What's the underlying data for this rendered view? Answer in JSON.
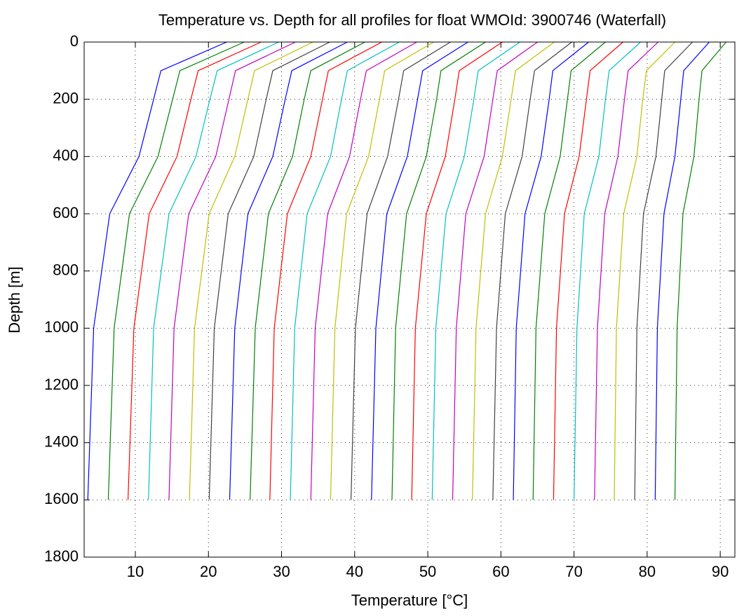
{
  "chart_data": {
    "type": "line",
    "title": "Temperature vs. Depth for all profiles for float WMOId: 3900746 (Waterfall)",
    "x_label": "Temperature [°C]",
    "y_label": "Depth [m]",
    "depths": [
      0,
      100,
      200,
      400,
      600,
      1000,
      1600
    ],
    "xlim": [
      3,
      92
    ],
    "xticks": [
      10,
      20,
      30,
      40,
      50,
      60,
      70,
      80,
      90
    ],
    "ylim": [
      0,
      1800
    ],
    "yticks": [
      0,
      200,
      400,
      600,
      800,
      1000,
      1200,
      1400,
      1600,
      1800
    ],
    "y_reversed": true,
    "grid": true,
    "color_cycle": [
      "#0000ff",
      "#008000",
      "#ff0000",
      "#00bfbf",
      "#bf00bf",
      "#bfbf00",
      "#404040"
    ],
    "series": [
      {
        "values": [
          22.5,
          13.5,
          12.5,
          10.5,
          6.5,
          4.3,
          3.5
        ]
      },
      {
        "values": [
          24.9,
          16.1,
          15.1,
          13.1,
          9.2,
          7.1,
          6.3
        ]
      },
      {
        "values": [
          27.2,
          18.6,
          17.6,
          15.7,
          11.9,
          9.8,
          9.0
        ]
      },
      {
        "values": [
          29.6,
          21.2,
          20.2,
          18.3,
          14.6,
          12.5,
          11.8
        ]
      },
      {
        "values": [
          31.9,
          23.7,
          22.8,
          21.0,
          17.3,
          15.3,
          14.6
        ]
      },
      {
        "values": [
          34.3,
          26.3,
          25.4,
          23.6,
          20.1,
          18.1,
          17.4
        ]
      },
      {
        "values": [
          36.6,
          28.8,
          27.9,
          26.2,
          22.7,
          20.8,
          20.1
        ]
      },
      {
        "values": [
          39.0,
          31.4,
          30.5,
          28.8,
          25.4,
          23.6,
          22.9
        ]
      },
      {
        "values": [
          41.4,
          34.0,
          33.1,
          31.5,
          28.2,
          26.4,
          25.7
        ]
      },
      {
        "values": [
          43.7,
          36.4,
          35.6,
          34.0,
          30.8,
          29.0,
          28.4
        ]
      },
      {
        "values": [
          46.1,
          39.0,
          38.2,
          36.7,
          33.5,
          31.8,
          31.2
        ]
      },
      {
        "values": [
          48.5,
          41.6,
          40.8,
          39.3,
          36.3,
          34.6,
          34.0
        ]
      },
      {
        "values": [
          50.8,
          44.1,
          43.4,
          41.9,
          38.9,
          37.3,
          36.7
        ]
      },
      {
        "values": [
          53.1,
          46.7,
          46.0,
          44.5,
          41.7,
          40.1,
          39.5
        ]
      },
      {
        "values": [
          55.5,
          49.3,
          48.6,
          47.2,
          44.4,
          42.9,
          42.3
        ]
      },
      {
        "values": [
          57.9,
          51.8,
          51.2,
          49.8,
          47.1,
          45.6,
          45.1
        ]
      },
      {
        "values": [
          60.2,
          54.3,
          53.7,
          52.4,
          49.8,
          48.3,
          47.8
        ]
      },
      {
        "values": [
          62.6,
          56.9,
          56.3,
          55.0,
          52.5,
          51.1,
          50.6
        ]
      },
      {
        "values": [
          65.0,
          59.5,
          58.9,
          57.7,
          55.2,
          53.9,
          53.4
        ]
      },
      {
        "values": [
          67.3,
          62.0,
          61.4,
          60.2,
          57.9,
          56.6,
          56.1
        ]
      },
      {
        "values": [
          69.7,
          64.6,
          64.0,
          62.9,
          60.6,
          59.4,
          58.9
        ]
      },
      {
        "values": [
          72.0,
          67.1,
          66.6,
          65.5,
          63.3,
          62.1,
          61.7
        ]
      },
      {
        "values": [
          74.3,
          69.6,
          69.1,
          68.1,
          66.0,
          64.8,
          64.4
        ]
      },
      {
        "values": [
          76.7,
          72.2,
          71.7,
          70.7,
          68.7,
          67.6,
          67.2
        ]
      },
      {
        "values": [
          79.1,
          74.8,
          74.3,
          73.4,
          71.4,
          70.4,
          70.0
        ]
      },
      {
        "values": [
          81.5,
          77.4,
          76.9,
          76.0,
          74.2,
          73.2,
          72.8
        ]
      },
      {
        "values": [
          83.8,
          79.9,
          79.4,
          78.6,
          76.8,
          75.8,
          75.5
        ]
      },
      {
        "values": [
          86.2,
          82.4,
          82.0,
          81.2,
          79.5,
          78.6,
          78.3
        ]
      },
      {
        "values": [
          88.5,
          85.0,
          84.6,
          83.8,
          82.3,
          81.4,
          81.1
        ]
      },
      {
        "values": [
          90.8,
          87.5,
          87.1,
          86.4,
          84.9,
          84.1,
          83.8
        ]
      }
    ]
  }
}
